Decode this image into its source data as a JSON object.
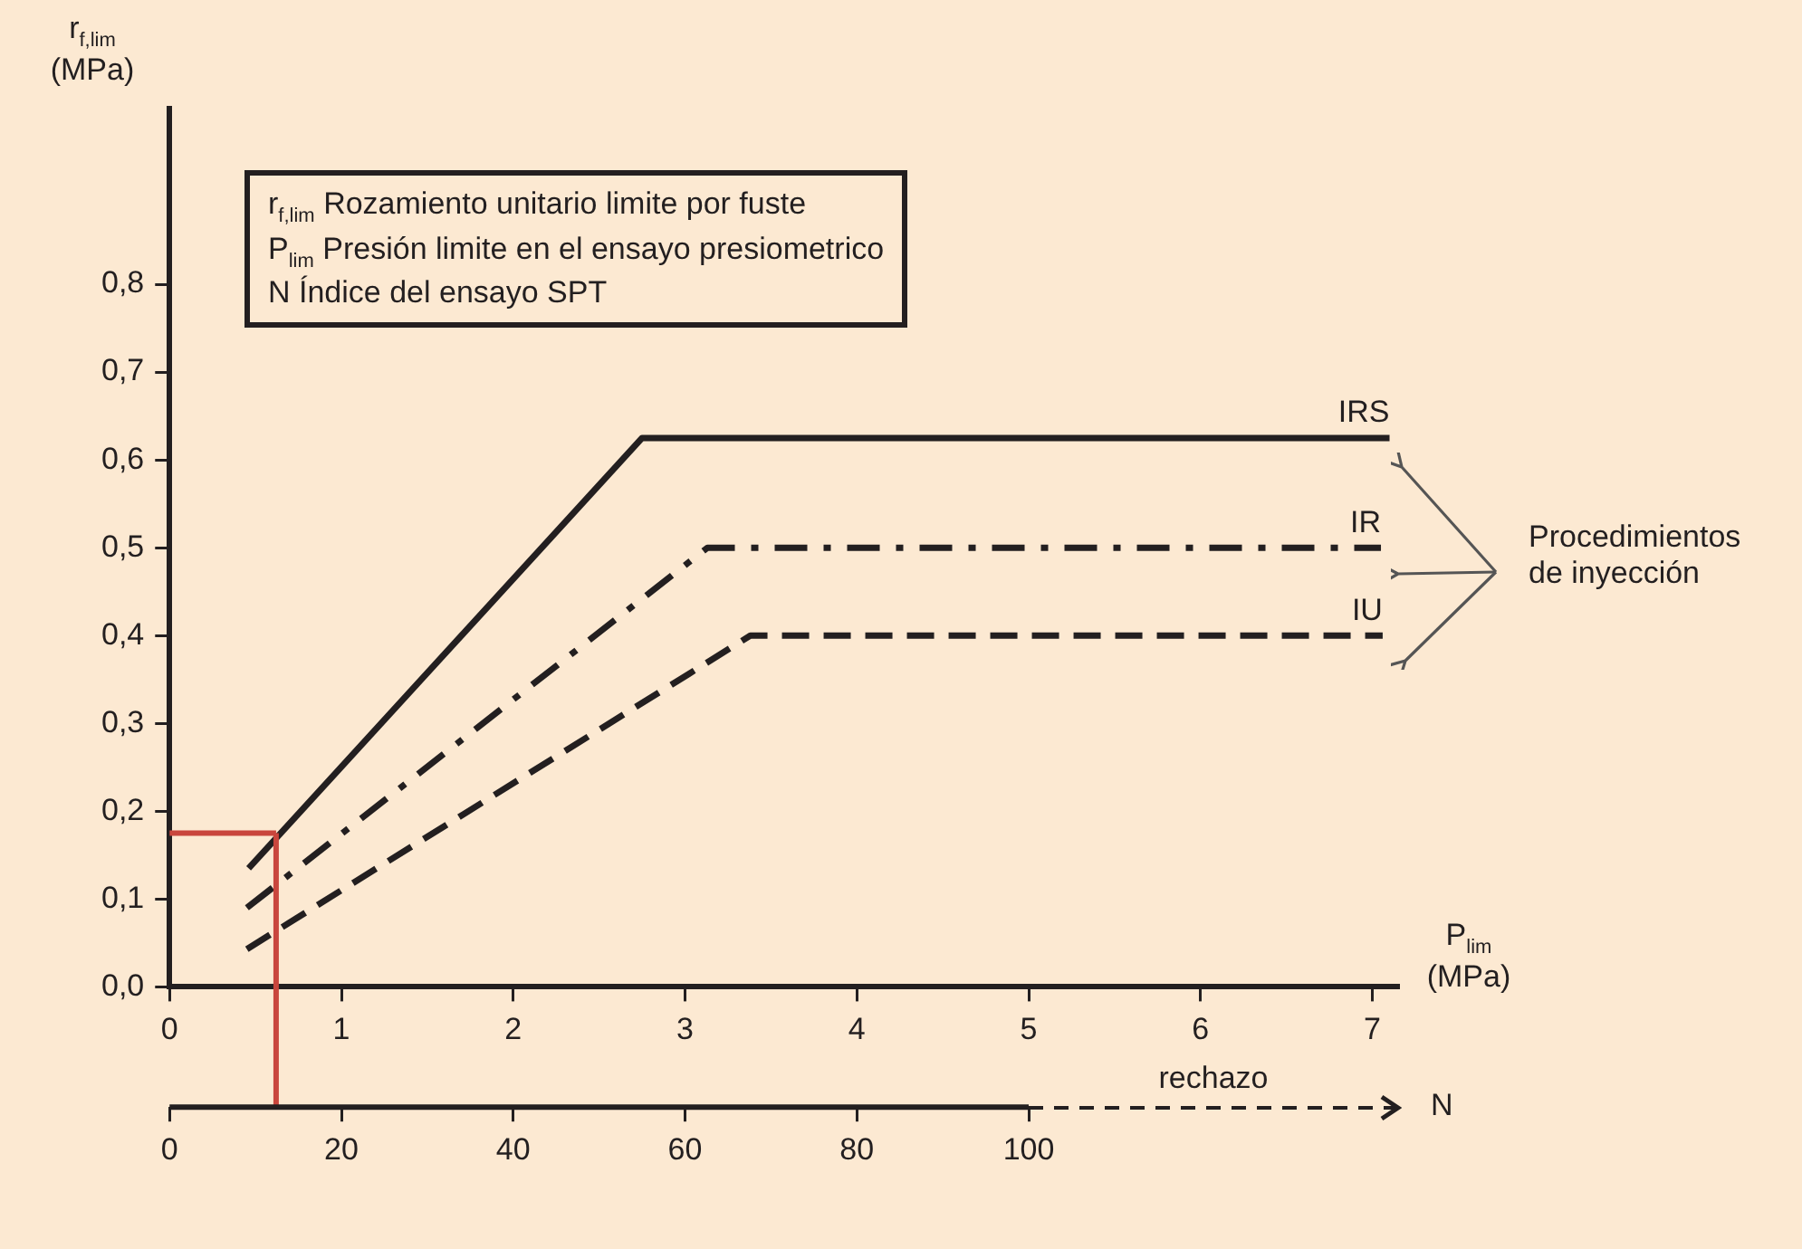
{
  "chart_data": {
    "type": "line",
    "xlabel": "P$_{lim}$ (MPa)",
    "ylabel": "r$_{f,lim}$ (MPa)",
    "x2label": "N",
    "xlim": [
      0,
      7.15
    ],
    "xticks": [
      0,
      1,
      2,
      3,
      4,
      5,
      6,
      7
    ],
    "ylim": [
      0,
      1.0
    ],
    "yticks": [
      {
        "value": 0,
        "label": "0,0"
      },
      {
        "value": 0.1,
        "label": "0,1"
      },
      {
        "value": 0.2,
        "label": "0,2"
      },
      {
        "value": 0.3,
        "label": "0,3"
      },
      {
        "value": 0.4,
        "label": "0,4"
      },
      {
        "value": 0.5,
        "label": "0,5"
      },
      {
        "value": 0.6,
        "label": "0,6"
      },
      {
        "value": 0.7,
        "label": "0,7"
      },
      {
        "value": 0.8,
        "label": "0,8"
      }
    ],
    "x2lim": [
      0,
      143
    ],
    "x2ticks": [
      0,
      20,
      40,
      60,
      80,
      100
    ],
    "series": [
      {
        "name": "IRS",
        "color": "#231f20",
        "x": [
          0.46,
          2.75,
          7.1
        ],
        "values": [
          0.135,
          0.625,
          0.625
        ],
        "line_style": "solid"
      },
      {
        "name": "IR",
        "color": "#231f20",
        "x": [
          0.45,
          3.13,
          7.05
        ],
        "values": [
          0.09,
          0.5,
          0.5
        ],
        "line_style": "dashdot"
      },
      {
        "name": "IU",
        "color": "#231f20",
        "x": [
          0.45,
          3.38,
          7.06
        ],
        "values": [
          0.043,
          0.4,
          0.4
        ],
        "line_style": "dashed"
      }
    ],
    "ref_lines": [
      {
        "axis": "x",
        "value": 0.62,
        "color": "#c9463d"
      },
      {
        "axis": "y",
        "value": 0.175,
        "color": "#c9463d"
      }
    ],
    "annotations": [
      "r$_{f,lim}$ Rozamiento unitario limite por fuste",
      "P$_{lim}$ Presión limite en el ensayo presiometrico",
      "N Índice del ensayo SPT",
      "Procedimientos de inyección",
      "rechazo"
    ],
    "grid": false,
    "legend": false,
    "marker": "none"
  }
}
